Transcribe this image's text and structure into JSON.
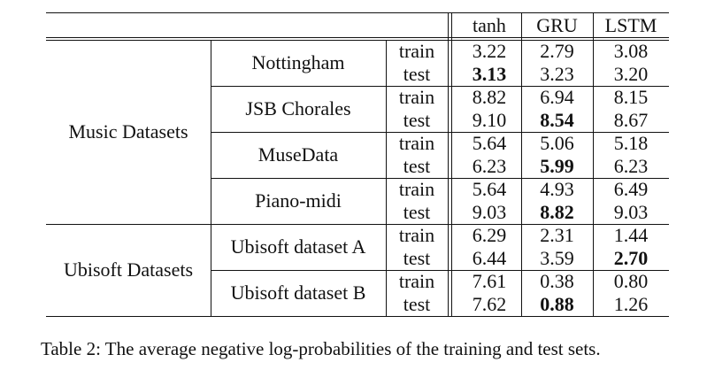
{
  "table": {
    "columns": [
      "tanh",
      "GRU",
      "LSTM"
    ],
    "groups": [
      {
        "name": "Music Datasets",
        "datasets": [
          {
            "name": "Nottingham",
            "rows": [
              {
                "split": "train",
                "values": [
                  "3.22",
                  "2.79",
                  "3.08"
                ],
                "bold": [
                  false,
                  false,
                  false
                ]
              },
              {
                "split": "test",
                "values": [
                  "3.13",
                  "3.23",
                  "3.20"
                ],
                "bold": [
                  true,
                  false,
                  false
                ]
              }
            ]
          },
          {
            "name": "JSB Chorales",
            "rows": [
              {
                "split": "train",
                "values": [
                  "8.82",
                  "6.94",
                  "8.15"
                ],
                "bold": [
                  false,
                  false,
                  false
                ]
              },
              {
                "split": "test",
                "values": [
                  "9.10",
                  "8.54",
                  "8.67"
                ],
                "bold": [
                  false,
                  true,
                  false
                ]
              }
            ]
          },
          {
            "name": "MuseData",
            "rows": [
              {
                "split": "train",
                "values": [
                  "5.64",
                  "5.06",
                  "5.18"
                ],
                "bold": [
                  false,
                  false,
                  false
                ]
              },
              {
                "split": "test",
                "values": [
                  "6.23",
                  "5.99",
                  "6.23"
                ],
                "bold": [
                  false,
                  true,
                  false
                ]
              }
            ]
          },
          {
            "name": "Piano-midi",
            "rows": [
              {
                "split": "train",
                "values": [
                  "5.64",
                  "4.93",
                  "6.49"
                ],
                "bold": [
                  false,
                  false,
                  false
                ]
              },
              {
                "split": "test",
                "values": [
                  "9.03",
                  "8.82",
                  "9.03"
                ],
                "bold": [
                  false,
                  true,
                  false
                ]
              }
            ]
          }
        ]
      },
      {
        "name": "Ubisoft Datasets",
        "datasets": [
          {
            "name": "Ubisoft dataset A",
            "rows": [
              {
                "split": "train",
                "values": [
                  "6.29",
                  "2.31",
                  "1.44"
                ],
                "bold": [
                  false,
                  false,
                  false
                ]
              },
              {
                "split": "test",
                "values": [
                  "6.44",
                  "3.59",
                  "2.70"
                ],
                "bold": [
                  false,
                  false,
                  true
                ]
              }
            ]
          },
          {
            "name": "Ubisoft dataset B",
            "rows": [
              {
                "split": "train",
                "values": [
                  "7.61",
                  "0.38",
                  "0.80"
                ],
                "bold": [
                  false,
                  false,
                  false
                ]
              },
              {
                "split": "test",
                "values": [
                  "7.62",
                  "0.88",
                  "1.26"
                ],
                "bold": [
                  false,
                  true,
                  false
                ]
              }
            ]
          }
        ]
      }
    ]
  },
  "caption": "Table 2: The average negative log-probabilities of the training and test sets."
}
